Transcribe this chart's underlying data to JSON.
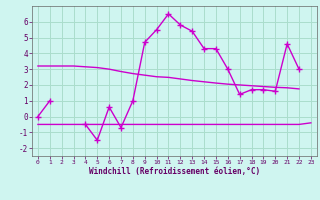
{
  "xlabel": "Windchill (Refroidissement éolien,°C)",
  "background_color": "#cff5f0",
  "grid_color": "#aaddcc",
  "line_color": "#cc00cc",
  "x_data": [
    0,
    1,
    2,
    3,
    4,
    5,
    6,
    7,
    8,
    9,
    10,
    11,
    12,
    13,
    14,
    15,
    16,
    17,
    18,
    19,
    20,
    21,
    22,
    23
  ],
  "y_main": [
    0.0,
    1.0,
    null,
    null,
    -0.5,
    -1.5,
    0.6,
    -0.7,
    1.0,
    4.7,
    5.5,
    6.5,
    5.8,
    5.4,
    4.3,
    4.3,
    3.0,
    1.4,
    1.7,
    1.7,
    1.6,
    4.6,
    3.0,
    null
  ],
  "y_line1": [
    3.2,
    3.2,
    3.2,
    3.2,
    3.15,
    3.1,
    3.0,
    2.85,
    2.72,
    2.62,
    2.52,
    2.48,
    2.38,
    2.28,
    2.2,
    2.12,
    2.05,
    2.0,
    1.95,
    1.9,
    1.85,
    1.82,
    1.75,
    null
  ],
  "y_line2": [
    -0.5,
    -0.5,
    -0.5,
    -0.5,
    -0.5,
    -0.5,
    -0.5,
    -0.5,
    -0.5,
    -0.5,
    -0.5,
    -0.5,
    -0.5,
    -0.5,
    -0.5,
    -0.5,
    -0.5,
    -0.5,
    -0.5,
    -0.5,
    -0.5,
    -0.5,
    -0.5,
    -0.4
  ],
  "ylim": [
    -2.5,
    7.0
  ],
  "xlim": [
    -0.5,
    23.5
  ],
  "yticks": [
    -2,
    -1,
    0,
    1,
    2,
    3,
    4,
    5,
    6
  ],
  "xticks": [
    0,
    1,
    2,
    3,
    4,
    5,
    6,
    7,
    8,
    9,
    10,
    11,
    12,
    13,
    14,
    15,
    16,
    17,
    18,
    19,
    20,
    21,
    22,
    23
  ]
}
